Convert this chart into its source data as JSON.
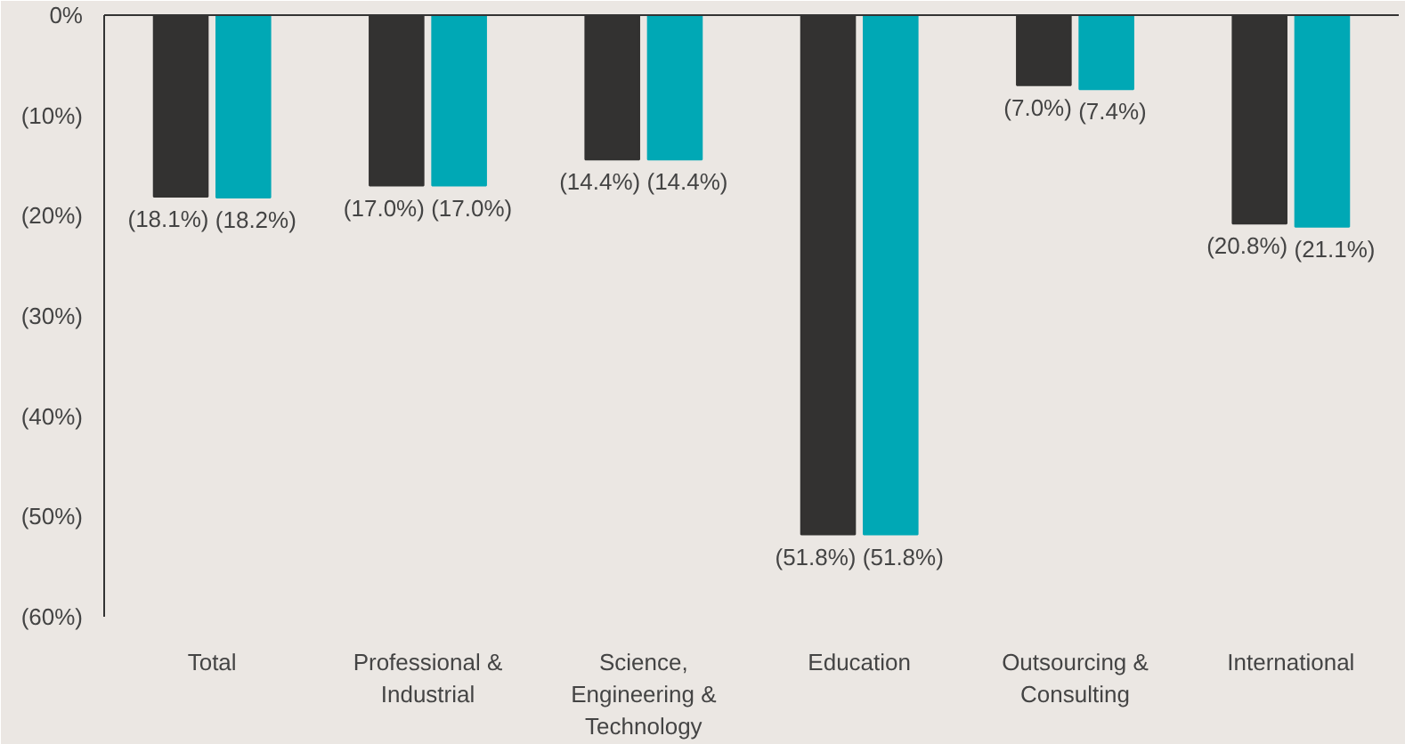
{
  "chart_data": {
    "type": "bar",
    "categories": [
      "Total",
      "Professional &\nIndustrial",
      "Science,\nEngineering &\nTechnology",
      "Education",
      "Outsourcing &\nConsulting",
      "International"
    ],
    "series": [
      {
        "color": "#333231",
        "values": [
          -18.1,
          -17.0,
          -14.4,
          -51.8,
          -7.0,
          -20.8
        ],
        "value_labels": [
          "(18.1%)",
          "(17.0%)",
          "(14.4%)",
          "(51.8%)",
          "(7.0%)",
          "(20.8%)"
        ]
      },
      {
        "color": "#00a8b5",
        "values": [
          -18.2,
          -17.0,
          -14.4,
          -51.8,
          -7.4,
          -21.1
        ],
        "value_labels": [
          "(18.2%)",
          "(17.0%)",
          "(14.4%)",
          "(51.8%)",
          "(7.4%)",
          "(21.1%)"
        ]
      }
    ],
    "ylim": [
      -60,
      0
    ],
    "yticks": [
      {
        "value": 0,
        "label": "0%"
      },
      {
        "value": -10,
        "label": "(10%)"
      },
      {
        "value": -20,
        "label": "(20%)"
      },
      {
        "value": -30,
        "label": "(30%)"
      },
      {
        "value": -40,
        "label": "(40%)"
      },
      {
        "value": -50,
        "label": "(50%)"
      },
      {
        "value": -60,
        "label": "(60%)"
      }
    ],
    "grid": false
  }
}
